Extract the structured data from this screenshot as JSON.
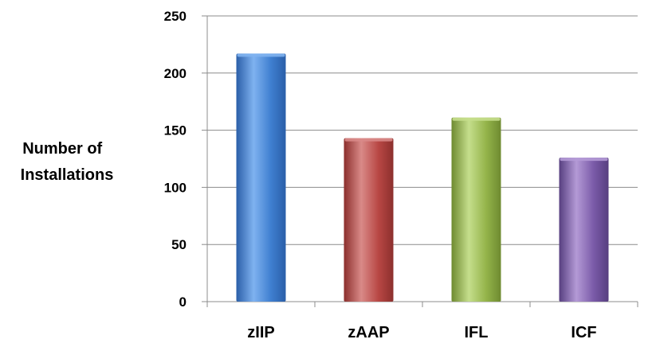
{
  "chart_data": {
    "type": "bar",
    "categories": [
      "zIIP",
      "zAAP",
      "IFL",
      "ICF"
    ],
    "values": [
      217,
      143,
      161,
      126
    ],
    "ylabel_lines": [
      "Number of",
      "Installations"
    ],
    "xlabel": "",
    "title": "",
    "ylim": [
      0,
      250
    ],
    "yticks": [
      0,
      50,
      100,
      150,
      200,
      250
    ],
    "grid": true,
    "legend": "none",
    "colors": [
      {
        "light": "#7fb2f0",
        "base": "#3f7fd0",
        "dark": "#2a5ea8"
      },
      {
        "light": "#d98a88",
        "base": "#b84744",
        "dark": "#8c2f2d"
      },
      {
        "light": "#c5de8c",
        "base": "#94b44a",
        "dark": "#6e8a30"
      },
      {
        "light": "#b49ad6",
        "base": "#7a5aa8",
        "dark": "#573f80"
      }
    ]
  }
}
